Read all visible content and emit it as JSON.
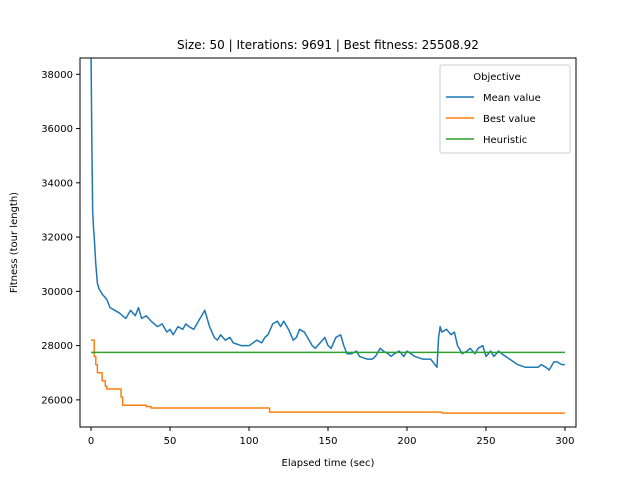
{
  "chart_data": {
    "type": "line",
    "title": "Size: 50 | Iterations: 9691 | Best fitness: 25508.92",
    "xlabel": "Elapsed time (sec)",
    "ylabel": "Fitness (tour length)",
    "xlim": [
      -7,
      307
    ],
    "ylim": [
      25000,
      38600
    ],
    "xticks": [
      0,
      50,
      100,
      150,
      200,
      250,
      300
    ],
    "yticks": [
      26000,
      28000,
      30000,
      32000,
      34000,
      36000,
      38000
    ],
    "grid": false,
    "legend": {
      "title": "Objective",
      "placement": "top-right"
    },
    "series": [
      {
        "name": "Mean value",
        "color": "#1f77b4",
        "x": [
          0,
          0.5,
          1,
          1.5,
          2,
          3,
          4,
          5,
          7,
          10,
          12,
          15,
          18,
          20,
          22,
          25,
          28,
          30,
          32,
          35,
          38,
          40,
          42,
          45,
          48,
          50,
          52,
          55,
          58,
          60,
          62,
          65,
          68,
          70,
          72,
          75,
          78,
          80,
          82,
          85,
          88,
          90,
          95,
          100,
          105,
          108,
          110,
          112,
          115,
          118,
          120,
          122,
          125,
          128,
          130,
          132,
          135,
          138,
          140,
          142,
          145,
          148,
          150,
          152,
          155,
          158,
          160,
          162,
          165,
          168,
          170,
          175,
          178,
          180,
          183,
          185,
          188,
          190,
          192,
          195,
          198,
          200,
          205,
          210,
          215,
          219,
          220,
          221,
          222,
          225,
          228,
          230,
          232,
          235,
          238,
          240,
          243,
          245,
          248,
          250,
          253,
          255,
          258,
          260,
          265,
          270,
          275,
          278,
          280,
          283,
          285,
          288,
          290,
          293,
          295,
          298,
          300
        ],
        "values": [
          38600,
          35500,
          33000,
          32400,
          32000,
          31000,
          30300,
          30100,
          29900,
          29700,
          29400,
          29300,
          29200,
          29100,
          29000,
          29300,
          29100,
          29400,
          29000,
          29100,
          28900,
          28800,
          28700,
          28800,
          28500,
          28600,
          28400,
          28700,
          28600,
          28800,
          28700,
          28600,
          28900,
          29100,
          29300,
          28700,
          28300,
          28200,
          28400,
          28200,
          28300,
          28100,
          28000,
          28000,
          28200,
          28100,
          28300,
          28400,
          28800,
          28900,
          28700,
          28900,
          28600,
          28200,
          28300,
          28600,
          28500,
          28200,
          28000,
          27900,
          28100,
          28300,
          28000,
          27900,
          28300,
          28400,
          28000,
          27700,
          27700,
          27800,
          27600,
          27500,
          27500,
          27600,
          27900,
          27800,
          27700,
          27600,
          27700,
          27800,
          27600,
          27800,
          27600,
          27500,
          27500,
          27200,
          28300,
          28700,
          28500,
          28600,
          28400,
          28500,
          28000,
          27700,
          27800,
          27900,
          27700,
          27900,
          28000,
          27600,
          27800,
          27600,
          27800,
          27700,
          27500,
          27300,
          27200,
          27200,
          27200,
          27200,
          27300,
          27200,
          27100,
          27400,
          27400,
          27300,
          27300
        ]
      },
      {
        "name": "Best value",
        "color": "#ff7f0e",
        "x": [
          0,
          1,
          2,
          3,
          4,
          5,
          6,
          7,
          8,
          9,
          10,
          12,
          14,
          16,
          18,
          19,
          20,
          25,
          30,
          35,
          38,
          40,
          50,
          60,
          70,
          80,
          100,
          110,
          112,
          113,
          150,
          200,
          220,
          222,
          223,
          250,
          300
        ],
        "values": [
          28200,
          28200,
          27600,
          27300,
          27000,
          27000,
          27000,
          26700,
          26700,
          26500,
          26400,
          26400,
          26400,
          26400,
          26400,
          26100,
          25800,
          25800,
          25800,
          25750,
          25700,
          25700,
          25700,
          25700,
          25700,
          25700,
          25700,
          25700,
          25700,
          25550,
          25550,
          25550,
          25550,
          25520,
          25510,
          25510,
          25510
        ]
      },
      {
        "name": "Heuristic",
        "color": "#2ca02c",
        "x": [
          0,
          300
        ],
        "values": [
          27750,
          27750
        ]
      }
    ]
  }
}
